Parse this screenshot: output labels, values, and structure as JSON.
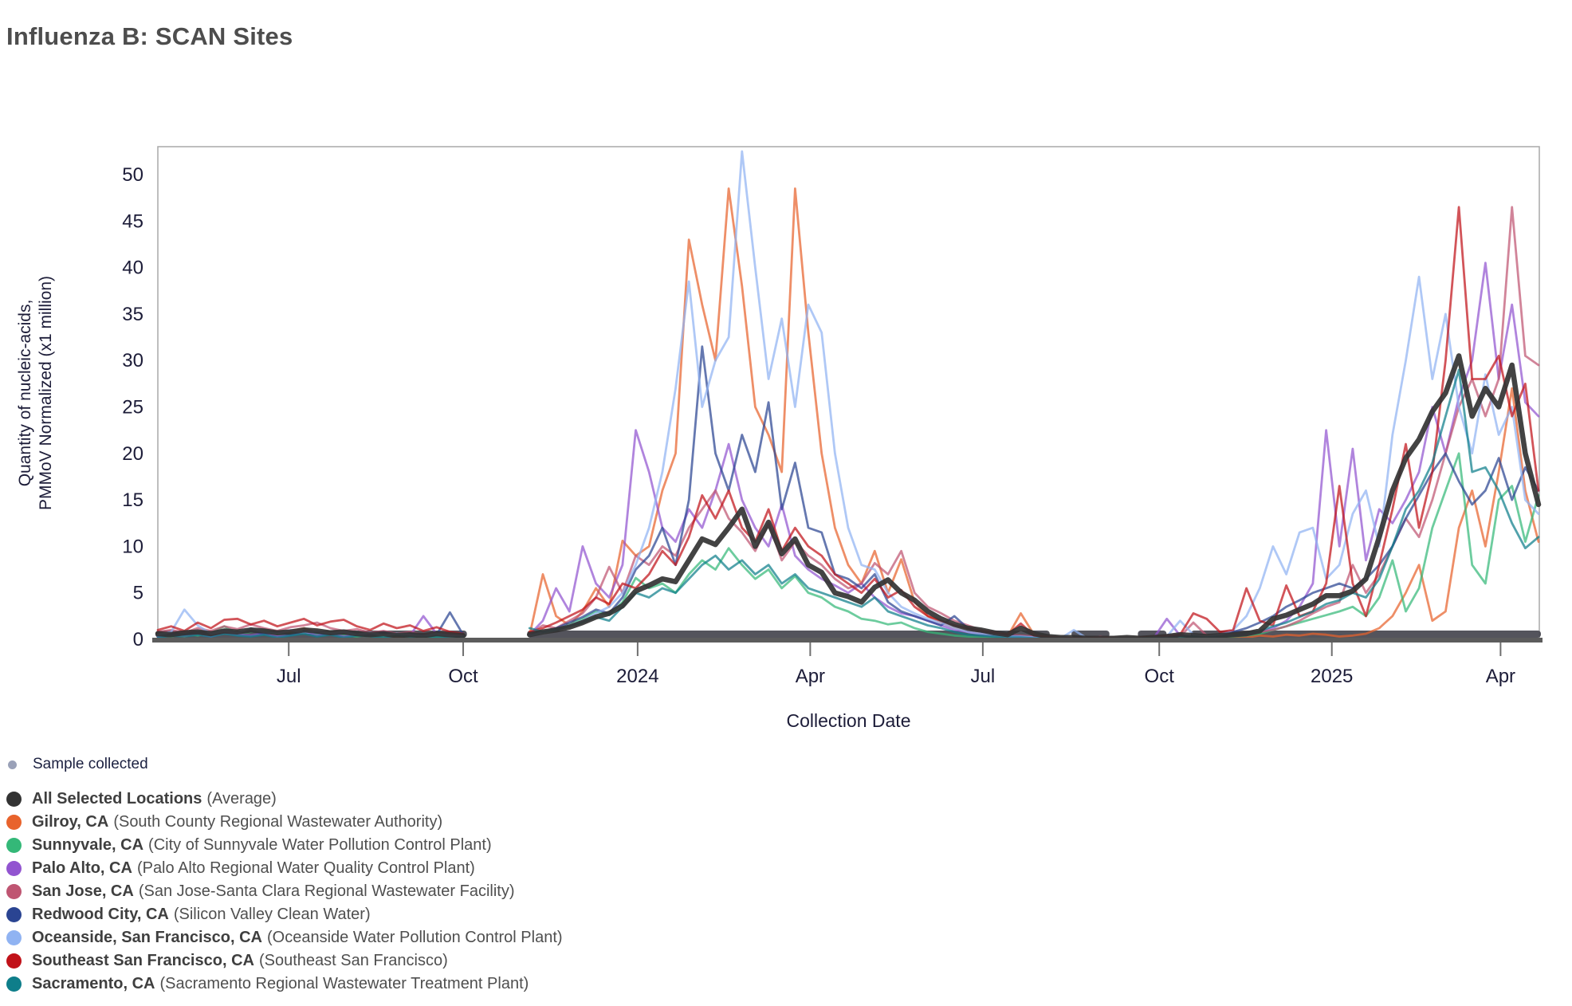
{
  "title": "Influenza B: SCAN Sites",
  "axes": {
    "xlabel": "Collection Date",
    "ylabel_line1": "Quantity of nucleic-acids,",
    "ylabel_line2": "PMMoV Normalized (x1 million)",
    "tick_label_color": "#1c1c38",
    "y_ticks": [
      0,
      5,
      10,
      15,
      20,
      25,
      30,
      35,
      40,
      45,
      50
    ],
    "x_ticks": [
      {
        "label": "Jul",
        "week": 9.86
      },
      {
        "label": "Oct",
        "week": 23.0
      },
      {
        "label": "2024",
        "week": 36.14
      },
      {
        "label": "Apr",
        "week": 49.14
      },
      {
        "label": "Jul",
        "week": 62.14
      },
      {
        "label": "Oct",
        "week": 75.43
      },
      {
        "label": "2025",
        "week": 88.43
      },
      {
        "label": "Apr",
        "week": 101.14
      }
    ]
  },
  "legend": {
    "sample_collected": {
      "label": "Sample collected",
      "color": "#9aa1b8"
    },
    "locations": [
      {
        "name": "All Selected Locations",
        "desc": "(Average)",
        "color": "#333333"
      },
      {
        "name": "Gilroy, CA",
        "desc": "(South County Regional Wastewater Authority)",
        "color": "#e8632c"
      },
      {
        "name": "Sunnyvale, CA",
        "desc": "(City of Sunnyvale Water Pollution Control Plant)",
        "color": "#34b878"
      },
      {
        "name": "Palo Alto, CA",
        "desc": "(Palo Alto Regional Water Quality Control Plant)",
        "color": "#9254d0"
      },
      {
        "name": "San Jose, CA",
        "desc": "(San Jose-Santa Clara Regional Wastewater Facility)",
        "color": "#bf5572"
      },
      {
        "name": "Redwood City, CA",
        "desc": "(Silicon Valley Clean Water)",
        "color": "#2a4492"
      },
      {
        "name": "Oceanside, San Francisco, CA",
        "desc": "(Oceanside Water Pollution Control Plant)",
        "color": "#90b3f2"
      },
      {
        "name": "Southeast San Francisco, CA",
        "desc": "(Southeast San Francisco)",
        "color": "#c11219"
      },
      {
        "name": "Sacramento, CA",
        "desc": "(Sacramento Regional Wastewater Treatment Plant)",
        "color": "#0e7e8a"
      }
    ]
  },
  "chart_data": {
    "type": "line",
    "title": "Influenza B: SCAN Sites",
    "xlabel": "Collection Date",
    "ylabel": "Quantity of nucleic-acids, PMMoV Normalized (x1 million)",
    "ylim": [
      0,
      52.5
    ],
    "grid": false,
    "legend_position": "bottom-left",
    "x_start_date": "2023-04-23",
    "x_step_days": 7,
    "n_points": 105,
    "no_data_note": "values are null for weeks 2023-10-08 through 2023-10-29 (no samples collected)",
    "sample_collected_segments_weeks": [
      [
        0,
        23.1
      ],
      [
        28,
        67
      ],
      [
        69,
        71.5
      ],
      [
        74,
        75.8
      ],
      [
        78,
        104
      ]
    ],
    "series": [
      {
        "name": "Gilroy, CA",
        "color": "#e8632c",
        "values": [
          0.4,
          0.6,
          0.3,
          0.8,
          0.5,
          0.9,
          0.6,
          1.1,
          0.8,
          0.5,
          0.9,
          1.2,
          0.7,
          0.5,
          0.8,
          0.4,
          0.3,
          0.5,
          0.3,
          0.4,
          0.2,
          0.5,
          0.3,
          0.2,
          null,
          null,
          null,
          null,
          0.4,
          7.0,
          2.5,
          1.5,
          3.0,
          5.5,
          3.5,
          10.6,
          9.0,
          10.0,
          16.0,
          20.0,
          43.0,
          36.0,
          30.0,
          48.5,
          38.0,
          25.0,
          22.0,
          18.0,
          48.5,
          33.0,
          20.0,
          12.0,
          8.0,
          6.0,
          9.5,
          5.0,
          8.6,
          4.0,
          2.5,
          1.8,
          1.2,
          0.8,
          0.6,
          0.4,
          0.3,
          2.8,
          0.5,
          0.2,
          0.1,
          0.1,
          0.1,
          0.0,
          0.1,
          0.1,
          0.0,
          0.1,
          0.2,
          0.3,
          0.2,
          0.4,
          0.2,
          0.3,
          0.2,
          0.4,
          0.3,
          0.5,
          0.4,
          0.6,
          0.5,
          0.3,
          0.4,
          0.6,
          1.2,
          2.5,
          5.0,
          8.0,
          2.0,
          3.0,
          12.0,
          16.0,
          10.0,
          18.0,
          27.0,
          16.0,
          10.5
        ]
      },
      {
        "name": "Sunnyvale, CA",
        "color": "#34b878",
        "values": [
          0.5,
          0.3,
          0.6,
          0.4,
          0.7,
          1.4,
          0.6,
          0.8,
          1.0,
          0.5,
          0.6,
          0.9,
          0.5,
          0.7,
          0.4,
          0.3,
          0.5,
          0.3,
          0.6,
          0.3,
          0.4,
          0.2,
          0.5,
          0.3,
          null,
          null,
          null,
          null,
          0.4,
          0.7,
          1.0,
          1.6,
          2.2,
          3.0,
          2.6,
          4.0,
          6.6,
          5.5,
          6.0,
          5.0,
          7.0,
          8.5,
          7.5,
          9.8,
          8.0,
          6.5,
          7.5,
          5.5,
          6.8,
          5.0,
          4.5,
          3.5,
          3.0,
          2.2,
          2.0,
          1.6,
          1.8,
          1.2,
          0.8,
          0.6,
          0.4,
          0.3,
          0.2,
          0.2,
          0.1,
          0.1,
          0.1,
          0.1,
          0.0,
          0.1,
          0.0,
          0.0,
          0.1,
          0.0,
          0.1,
          0.1,
          0.2,
          0.1,
          0.2,
          0.1,
          0.2,
          0.3,
          0.4,
          0.6,
          1.0,
          1.4,
          1.8,
          2.2,
          2.6,
          3.0,
          3.5,
          2.5,
          4.5,
          8.5,
          3.0,
          5.5,
          12.0,
          16.0,
          20.0,
          8.0,
          6.0,
          15.0,
          16.5,
          10.5,
          15.5
        ]
      },
      {
        "name": "Palo Alto, CA",
        "color": "#9254d0",
        "values": [
          0.3,
          0.5,
          0.4,
          0.6,
          0.3,
          0.7,
          0.5,
          0.4,
          0.6,
          0.3,
          0.5,
          0.8,
          0.4,
          0.6,
          0.3,
          0.5,
          0.5,
          0.8,
          0.5,
          0.4,
          2.5,
          0.6,
          0.4,
          0.3,
          null,
          null,
          null,
          null,
          0.5,
          2.0,
          5.5,
          3.0,
          10.0,
          6.0,
          4.5,
          8.0,
          22.5,
          18.0,
          12.0,
          10.5,
          14.0,
          12.0,
          16.0,
          21.0,
          15.0,
          12.0,
          10.0,
          14.5,
          9.0,
          7.5,
          6.5,
          5.8,
          5.0,
          6.0,
          4.5,
          3.5,
          2.8,
          2.5,
          2.0,
          1.5,
          1.0,
          0.8,
          0.5,
          0.4,
          0.3,
          0.2,
          0.2,
          0.1,
          0.1,
          0.0,
          0.1,
          0.0,
          0.1,
          0.1,
          0.0,
          0.1,
          2.2,
          0.4,
          0.2,
          0.1,
          0.3,
          0.4,
          0.5,
          0.8,
          1.2,
          2.0,
          3.5,
          6.0,
          22.5,
          10.0,
          20.5,
          8.5,
          14.0,
          12.5,
          15.0,
          18.0,
          25.0,
          20.0,
          26.0,
          30.0,
          40.5,
          28.0,
          36.0,
          25.5,
          24.0
        ]
      },
      {
        "name": "San Jose, CA",
        "color": "#bf5572",
        "values": [
          0.8,
          1.0,
          0.7,
          1.2,
          0.9,
          1.4,
          1.1,
          1.6,
          1.2,
          0.9,
          1.3,
          1.5,
          1.8,
          1.2,
          0.9,
          1.1,
          0.7,
          0.9,
          0.6,
          0.8,
          0.5,
          0.7,
          0.6,
          0.4,
          null,
          null,
          null,
          null,
          0.6,
          1.5,
          1.2,
          2.0,
          2.8,
          4.5,
          7.8,
          5.0,
          9.0,
          8.0,
          10.0,
          9.0,
          12.0,
          14.0,
          16.0,
          13.0,
          11.5,
          9.5,
          12.5,
          8.5,
          10.5,
          9.0,
          8.0,
          6.5,
          5.5,
          6.0,
          8.2,
          7.0,
          9.5,
          5.0,
          3.5,
          2.8,
          2.0,
          1.5,
          1.0,
          0.8,
          0.5,
          0.4,
          0.3,
          0.2,
          0.1,
          0.1,
          0.1,
          0.3,
          0.1,
          0.2,
          0.1,
          0.1,
          0.2,
          0.3,
          1.8,
          0.4,
          0.4,
          0.5,
          0.6,
          0.8,
          1.0,
          1.4,
          2.0,
          2.8,
          3.5,
          4.0,
          8.0,
          5.0,
          7.0,
          10.0,
          13.0,
          11.0,
          15.0,
          20.0,
          25.0,
          28.0,
          24.0,
          28.0,
          46.5,
          30.5,
          29.5
        ]
      },
      {
        "name": "Redwood City, CA",
        "color": "#2a4492",
        "values": [
          0.4,
          0.6,
          0.5,
          0.8,
          0.6,
          1.0,
          0.7,
          0.9,
          0.6,
          0.8,
          0.5,
          0.9,
          0.7,
          0.5,
          0.8,
          0.6,
          0.4,
          0.7,
          0.5,
          0.6,
          0.4,
          0.5,
          2.9,
          0.5,
          null,
          null,
          null,
          null,
          0.4,
          0.8,
          1.2,
          1.8,
          2.4,
          3.2,
          2.8,
          4.5,
          7.5,
          9.0,
          12.0,
          8.0,
          15.0,
          31.5,
          20.0,
          16.0,
          22.0,
          18.0,
          25.5,
          14.0,
          19.0,
          12.0,
          11.5,
          7.0,
          6.5,
          5.5,
          7.0,
          4.0,
          3.0,
          2.5,
          2.0,
          1.5,
          2.5,
          1.2,
          0.8,
          0.6,
          0.4,
          0.3,
          0.2,
          0.1,
          0.1,
          0.1,
          0.0,
          0.1,
          0.0,
          0.1,
          0.1,
          0.2,
          0.3,
          0.4,
          0.3,
          0.2,
          0.5,
          0.8,
          1.2,
          1.8,
          2.5,
          3.5,
          4.2,
          5.0,
          5.5,
          6.0,
          5.5,
          6.5,
          8.0,
          10.0,
          13.0,
          15.5,
          18.0,
          20.0,
          17.0,
          14.5,
          16.0,
          19.5,
          15.0,
          18.5,
          16.0
        ]
      },
      {
        "name": "Oceanside, San Francisco, CA",
        "color": "#90b3f2",
        "values": [
          0.5,
          0.8,
          3.2,
          1.5,
          0.6,
          0.9,
          0.7,
          1.2,
          0.8,
          0.6,
          1.0,
          0.7,
          0.9,
          0.6,
          0.8,
          0.5,
          0.7,
          0.4,
          0.6,
          0.5,
          0.3,
          0.6,
          0.4,
          0.3,
          null,
          null,
          null,
          null,
          0.4,
          0.7,
          1.0,
          1.5,
          2.0,
          2.8,
          3.5,
          5.0,
          8.0,
          12.0,
          18.0,
          27.0,
          38.5,
          25.0,
          30.0,
          32.5,
          52.5,
          40.0,
          28.0,
          34.5,
          25.0,
          36.0,
          33.0,
          20.0,
          12.0,
          8.0,
          7.5,
          5.0,
          3.5,
          2.8,
          2.2,
          1.8,
          1.2,
          0.8,
          0.6,
          0.5,
          0.3,
          0.3,
          0.2,
          0.1,
          0.1,
          1.0,
          0.1,
          0.1,
          0.0,
          0.1,
          0.1,
          0.2,
          0.3,
          2.0,
          0.5,
          0.3,
          0.5,
          1.0,
          2.5,
          5.5,
          10.0,
          7.0,
          11.5,
          12.0,
          6.5,
          8.0,
          13.5,
          16.0,
          10.0,
          22.0,
          30.0,
          39.0,
          28.0,
          35.0,
          25.0,
          20.0,
          28.5,
          22.0,
          25.0,
          15.0,
          13.5
        ]
      },
      {
        "name": "Southeast San Francisco, CA",
        "color": "#c11219",
        "values": [
          1.0,
          1.4,
          0.9,
          1.8,
          1.2,
          2.1,
          2.2,
          1.6,
          2.0,
          1.4,
          1.8,
          2.2,
          1.5,
          1.9,
          2.1,
          1.4,
          1.0,
          1.7,
          1.2,
          1.5,
          0.9,
          1.3,
          0.8,
          0.6,
          null,
          null,
          null,
          null,
          0.8,
          1.2,
          1.8,
          2.5,
          3.2,
          4.5,
          3.8,
          6.0,
          5.5,
          7.0,
          9.5,
          8.0,
          11.0,
          15.5,
          13.0,
          16.0,
          12.0,
          10.5,
          14.0,
          9.5,
          12.0,
          10.0,
          9.0,
          7.0,
          6.0,
          5.0,
          6.5,
          4.5,
          5.3,
          3.5,
          2.5,
          2.0,
          1.5,
          1.2,
          0.9,
          0.7,
          0.5,
          1.7,
          0.4,
          0.3,
          0.2,
          0.1,
          0.2,
          0.1,
          0.2,
          0.1,
          0.2,
          0.3,
          0.4,
          0.5,
          2.8,
          2.2,
          0.8,
          1.0,
          5.5,
          2.0,
          1.5,
          5.8,
          2.5,
          3.0,
          6.0,
          16.5,
          6.0,
          2.5,
          8.0,
          14.0,
          21.0,
          12.0,
          18.0,
          30.0,
          46.5,
          28.0,
          28.0,
          30.5,
          24.0,
          27.5,
          16.0
        ]
      },
      {
        "name": "Sacramento, CA",
        "color": "#0e7e8a",
        "values": [
          0.2,
          0.4,
          0.3,
          0.5,
          0.3,
          0.6,
          0.4,
          0.3,
          0.5,
          0.2,
          0.4,
          0.6,
          0.3,
          0.5,
          0.2,
          0.4,
          0.3,
          0.2,
          0.4,
          0.3,
          0.2,
          0.3,
          0.2,
          0.2,
          null,
          null,
          null,
          null,
          1.2,
          0.8,
          1.0,
          1.4,
          1.8,
          2.4,
          2.0,
          3.5,
          5.0,
          4.5,
          5.5,
          5.0,
          6.5,
          8.0,
          9.0,
          7.5,
          8.5,
          7.0,
          8.0,
          6.0,
          7.0,
          5.5,
          5.0,
          4.5,
          4.0,
          3.5,
          4.5,
          3.0,
          2.5,
          2.0,
          1.5,
          1.2,
          0.8,
          0.5,
          0.4,
          0.3,
          0.2,
          0.2,
          0.1,
          0.1,
          0.1,
          0.0,
          0.1,
          0.0,
          0.1,
          0.1,
          0.1,
          0.2,
          0.1,
          0.2,
          0.3,
          0.2,
          0.3,
          0.4,
          0.6,
          0.9,
          1.4,
          1.8,
          2.4,
          3.0,
          3.8,
          4.2,
          5.0,
          4.5,
          6.5,
          10.0,
          14.0,
          16.0,
          19.0,
          24.0,
          29.0,
          18.0,
          18.5,
          16.0,
          12.5,
          9.8,
          11.0
        ]
      },
      {
        "name": "All Selected Locations (Average)",
        "color": "#333333",
        "is_average": true,
        "values": [
          0.6,
          0.5,
          0.7,
          0.8,
          0.6,
          0.9,
          0.8,
          1.0,
          0.9,
          0.7,
          0.8,
          1.0,
          0.9,
          0.7,
          0.8,
          0.6,
          0.5,
          0.6,
          0.4,
          0.5,
          0.4,
          0.6,
          0.5,
          0.4,
          null,
          null,
          null,
          null,
          0.5,
          0.8,
          1.0,
          1.3,
          1.8,
          2.4,
          2.8,
          3.6,
          5.2,
          5.8,
          6.5,
          6.2,
          8.5,
          10.8,
          10.2,
          12.0,
          14.0,
          10.0,
          12.6,
          9.2,
          10.8,
          8.0,
          7.2,
          5.0,
          4.6,
          4.0,
          5.6,
          6.4,
          5.0,
          4.2,
          3.0,
          2.2,
          1.6,
          1.2,
          1.0,
          0.7,
          0.5,
          1.2,
          0.6,
          0.3,
          0.2,
          0.2,
          0.1,
          0.1,
          0.1,
          0.2,
          0.1,
          0.2,
          0.3,
          0.5,
          0.4,
          0.3,
          0.4,
          0.5,
          0.6,
          0.9,
          2.2,
          2.6,
          3.2,
          3.8,
          4.7,
          4.7,
          5.2,
          6.5,
          11.0,
          16.0,
          19.5,
          21.5,
          24.5,
          26.5,
          30.5,
          24.0,
          27.0,
          25.0,
          29.5,
          20.0,
          14.5
        ]
      }
    ]
  }
}
